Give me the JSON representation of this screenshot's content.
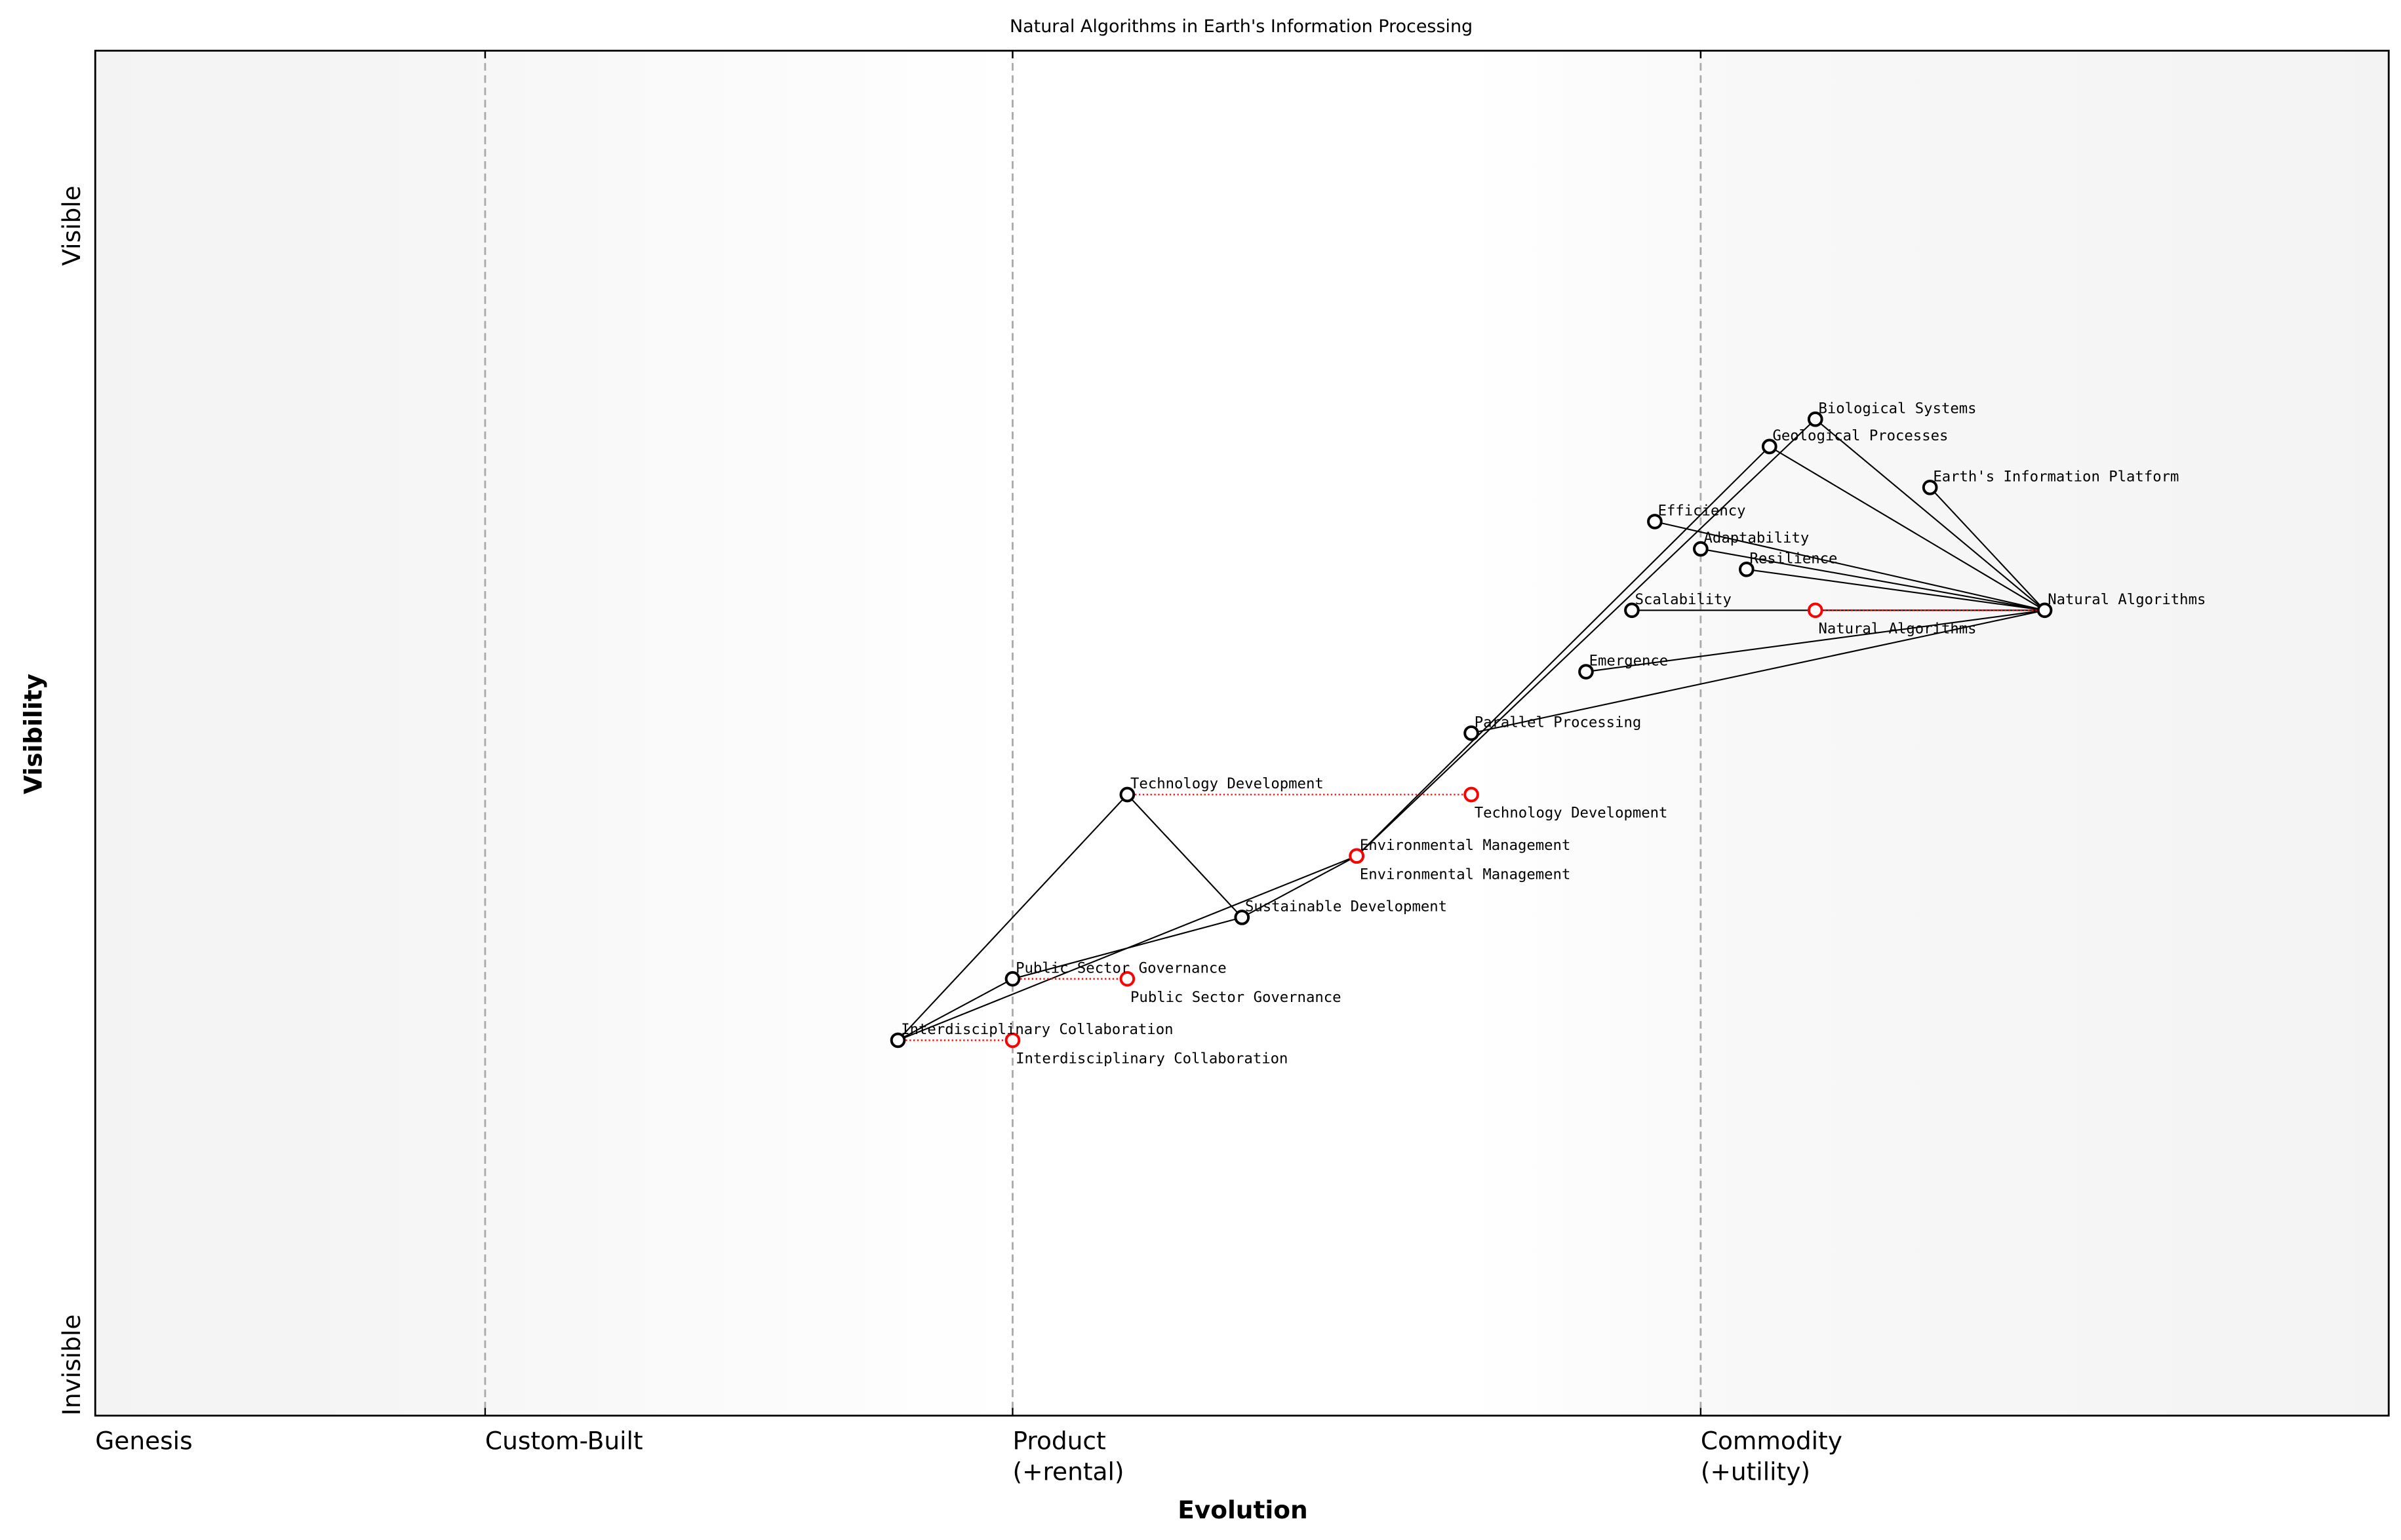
{
  "chart_data": {
    "type": "scatter",
    "subtype": "wardley-map",
    "title": "Natural Algorithms in Earth's Information Processing",
    "xlabel": "Evolution",
    "ylabel": "Visibility",
    "xlim": [
      0,
      1
    ],
    "ylim": [
      0,
      1
    ],
    "grid": false,
    "legend": "none",
    "y_ticks": [
      {
        "value": 1,
        "label": "Visible"
      },
      {
        "value": 0,
        "label": "Invisible"
      }
    ],
    "x_stages": [
      {
        "value": 0.0,
        "label": [
          "Genesis"
        ]
      },
      {
        "value": 0.17,
        "label": [
          "Custom-Built"
        ]
      },
      {
        "value": 0.4,
        "label": [
          "Product",
          "(+rental)"
        ]
      },
      {
        "value": 0.7,
        "label": [
          "Commodity",
          "(+utility)"
        ]
      }
    ],
    "colors": {
      "node": "#000000",
      "evolved_node": "#ff0000",
      "link": "#000000",
      "evolution_link": "#ff0000",
      "stage_line": "#aaaaaa",
      "band_edge": "#f3f3f3",
      "band_center": "#ffffff"
    },
    "components": [
      {
        "name": "Biological Systems",
        "x": 0.75,
        "y": 0.73
      },
      {
        "name": "Geological Processes",
        "x": 0.73,
        "y": 0.71
      },
      {
        "name": "Earth's Information Platform",
        "x": 0.8,
        "y": 0.68
      },
      {
        "name": "Efficiency",
        "x": 0.68,
        "y": 0.655
      },
      {
        "name": "Adaptability",
        "x": 0.7,
        "y": 0.635
      },
      {
        "name": "Resilience",
        "x": 0.72,
        "y": 0.62
      },
      {
        "name": "Scalability",
        "x": 0.67,
        "y": 0.59
      },
      {
        "name": "Natural Algorithms",
        "x": 0.85,
        "y": 0.59
      },
      {
        "name": "Emergence",
        "x": 0.65,
        "y": 0.545
      },
      {
        "name": "Parallel Processing",
        "x": 0.6,
        "y": 0.5
      },
      {
        "name": "Technology Development",
        "x": 0.45,
        "y": 0.455
      },
      {
        "name": "Environmental Management",
        "x": 0.55,
        "y": 0.41
      },
      {
        "name": "Sustainable Development",
        "x": 0.5,
        "y": 0.365
      },
      {
        "name": "Public Sector Governance",
        "x": 0.4,
        "y": 0.32
      },
      {
        "name": "Interdisciplinary Collaboration",
        "x": 0.35,
        "y": 0.275
      }
    ],
    "evolutions": [
      {
        "name": "Natural Algorithms",
        "to_x": 0.75
      },
      {
        "name": "Technology Development",
        "to_x": 0.6
      },
      {
        "name": "Environmental Management",
        "to_x": 0.55
      },
      {
        "name": "Public Sector Governance",
        "to_x": 0.45
      },
      {
        "name": "Interdisciplinary Collaboration",
        "to_x": 0.4
      }
    ],
    "links": [
      [
        "Interdisciplinary Collaboration",
        "Technology Development"
      ],
      [
        "Interdisciplinary Collaboration",
        "Public Sector Governance"
      ],
      [
        "Interdisciplinary Collaboration",
        "Environmental Management"
      ],
      [
        "Public Sector Governance",
        "Sustainable Development"
      ],
      [
        "Technology Development",
        "Sustainable Development"
      ],
      [
        "Sustainable Development",
        "Environmental Management"
      ],
      [
        "Environmental Management",
        "Geological Processes"
      ],
      [
        "Environmental Management",
        "Biological Systems"
      ],
      [
        "Natural Algorithms",
        "Biological Systems"
      ],
      [
        "Natural Algorithms",
        "Geological Processes"
      ],
      [
        "Natural Algorithms",
        "Earth's Information Platform"
      ],
      [
        "Natural Algorithms",
        "Efficiency"
      ],
      [
        "Natural Algorithms",
        "Adaptability"
      ],
      [
        "Natural Algorithms",
        "Resilience"
      ],
      [
        "Natural Algorithms",
        "Scalability"
      ],
      [
        "Natural Algorithms",
        "Emergence"
      ],
      [
        "Natural Algorithms",
        "Parallel Processing"
      ]
    ]
  }
}
